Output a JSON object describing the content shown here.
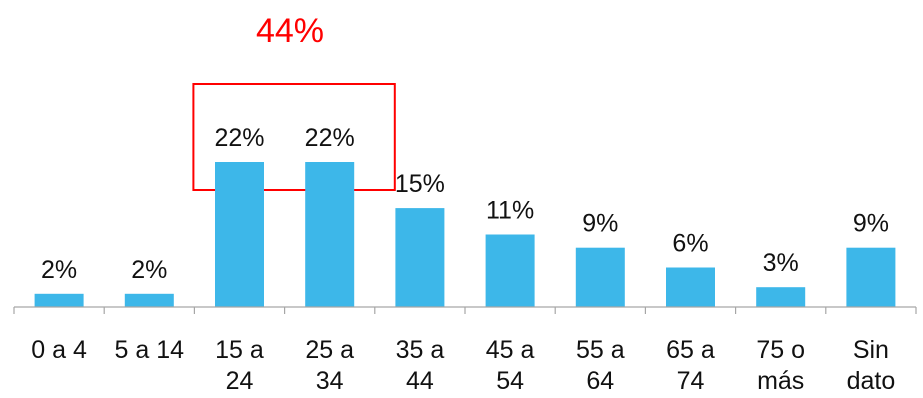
{
  "chart_data": {
    "type": "bar",
    "categories": [
      [
        "0 a 4"
      ],
      [
        "5 a 14"
      ],
      [
        "15 a",
        "24"
      ],
      [
        "25 a",
        "34"
      ],
      [
        "35 a",
        "44"
      ],
      [
        "45 a",
        "54"
      ],
      [
        "55 a",
        "64"
      ],
      [
        "65 a",
        "74"
      ],
      [
        "75 o",
        "más"
      ],
      [
        "Sin",
        "dato"
      ]
    ],
    "values": [
      2,
      2,
      22,
      22,
      15,
      11,
      9,
      6,
      3,
      9
    ],
    "value_labels": [
      "2%",
      "2%",
      "22%",
      "22%",
      "15%",
      "11%",
      "9%",
      "6%",
      "3%",
      "9%"
    ],
    "ylim": [
      0,
      22
    ],
    "title": "",
    "xlabel": "",
    "ylabel": "",
    "grid": false,
    "legend": "none",
    "bar_color": "#3DB7E9",
    "axis_color": "#A6A6A6",
    "highlight": {
      "text": "44%",
      "color": "#FF0000",
      "categories": [
        2,
        3
      ]
    }
  }
}
